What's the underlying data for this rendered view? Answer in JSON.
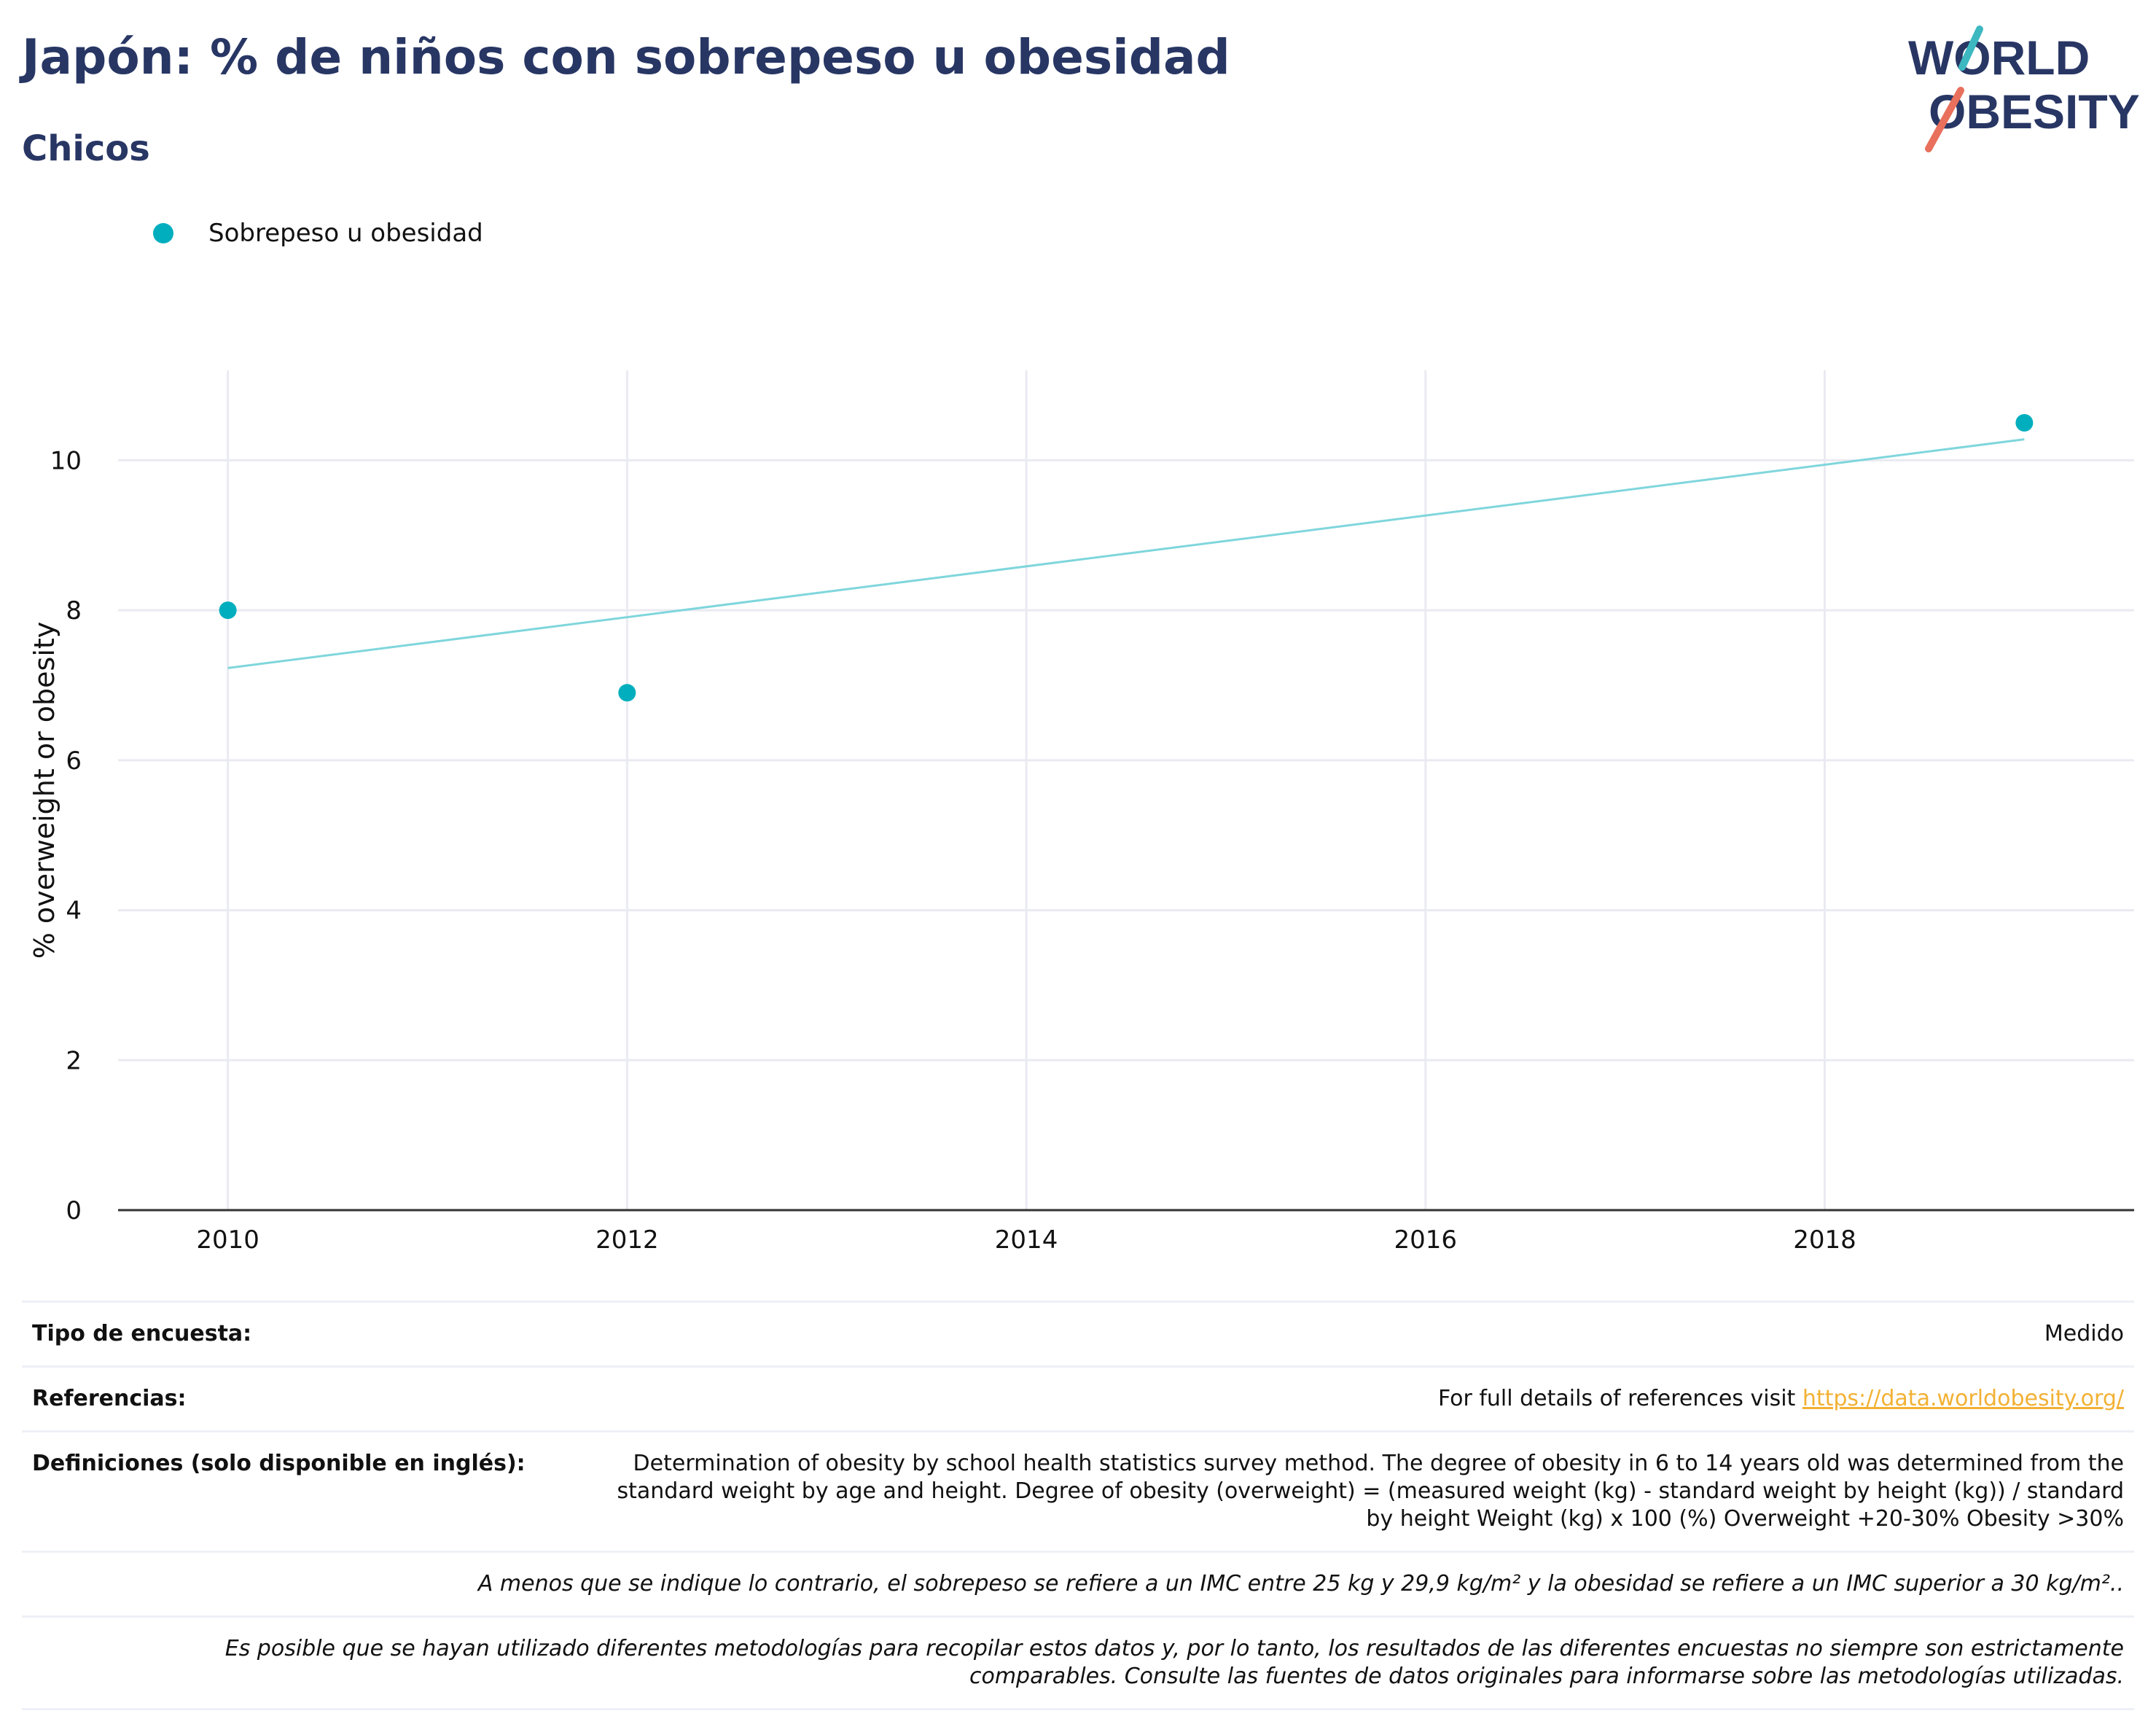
{
  "header": {
    "title": "Japón: % de niños con sobrepeso u obesidad",
    "subtitle": "Chicos"
  },
  "logo": {
    "line1": "WORLD",
    "line2": "OBESITY",
    "colors": {
      "navy": "#283664",
      "teal": "#3db8c0",
      "coral": "#e8705c"
    }
  },
  "legend": {
    "label": "Sobrepeso u obesidad",
    "color": "#00aebe"
  },
  "colors": {
    "point": "#00aebe",
    "trend": "#7fd6dc",
    "grid": "#eaeaf2",
    "axis": "#333333",
    "link": "#f2b134"
  },
  "chart_data": {
    "type": "scatter",
    "ylabel": "% overweight or obesity",
    "xlim": [
      2009.45,
      2019.55
    ],
    "ylim": [
      0,
      11.2
    ],
    "x_ticks": [
      2010,
      2012,
      2014,
      2016,
      2018
    ],
    "y_ticks": [
      0,
      2,
      4,
      6,
      8,
      10
    ],
    "grid": true,
    "legend_position": "top-left",
    "series": [
      {
        "name": "Sobrepeso u obesidad",
        "points": [
          {
            "x": 2010,
            "y": 8.0
          },
          {
            "x": 2012,
            "y": 6.9
          },
          {
            "x": 2019,
            "y": 10.5
          }
        ]
      }
    ],
    "trendline": {
      "x": [
        2010,
        2019
      ],
      "y": [
        7.23,
        10.28
      ]
    }
  },
  "info": {
    "survey_type": {
      "label": "Tipo de encuesta:",
      "value": "Medido"
    },
    "references": {
      "label": "Referencias:",
      "text": "For full details of references visit ",
      "link": "https://data.worldobesity.org/"
    },
    "definitions": {
      "label": "Definiciones (solo disponible en inglés):",
      "line1": "Determination of obesity by school health statistics survey method. The degree of obesity in 6 to 14 years old was determined from the",
      "line2": "standard weight by age and height. Degree of obesity (overweight) = (measured weight (kg) - standard weight by height (kg)) / standard",
      "line3": "by height Weight (kg) x 100 (%) Overweight +20-30% Obesity >30%"
    },
    "bmi_note": "A menos que se indique lo contrario, el sobrepeso se refiere a un IMC entre 25 kg y 29,9 kg/m² y la obesidad se refiere a un IMC superior a 30 kg/m²..",
    "methodology_note": {
      "line1": "Es posible que se hayan utilizado diferentes metodologías para recopilar estos datos y, por lo tanto, los resultados de las diferentes encuestas no siempre son estrictamente",
      "line2": "comparables. Consulte las fuentes de datos originales para informarse sobre las metodologías utilizadas."
    }
  }
}
